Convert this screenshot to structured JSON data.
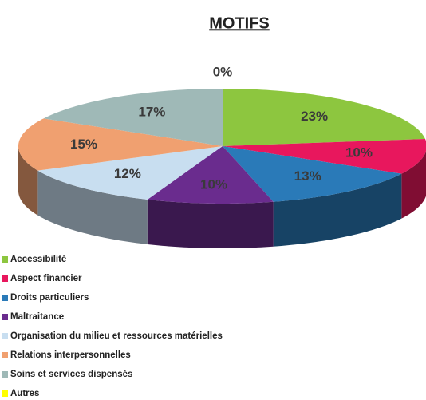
{
  "chart_data": {
    "type": "pie",
    "title": "MOTIFS",
    "categories": [
      "Accessibilité",
      "Aspect financier",
      "Droits particuliers",
      "Maltraitance",
      "Organisation du milieu et ressources matérielles",
      "Relations interpersonnelles",
      "Soins et services dispensés",
      "Autres"
    ],
    "values": [
      23,
      10,
      13,
      10,
      12,
      15,
      17,
      0
    ],
    "value_labels": [
      "23%",
      "10%",
      "13%",
      "10%",
      "12%",
      "15%",
      "17%",
      "0%"
    ],
    "colors": [
      "#8dc63f",
      "#e8175d",
      "#2a7ab8",
      "#6a2c8e",
      "#c8def0",
      "#f0a070",
      "#9fb9b7",
      "#ffff00"
    ],
    "legend": "bottom-left"
  }
}
